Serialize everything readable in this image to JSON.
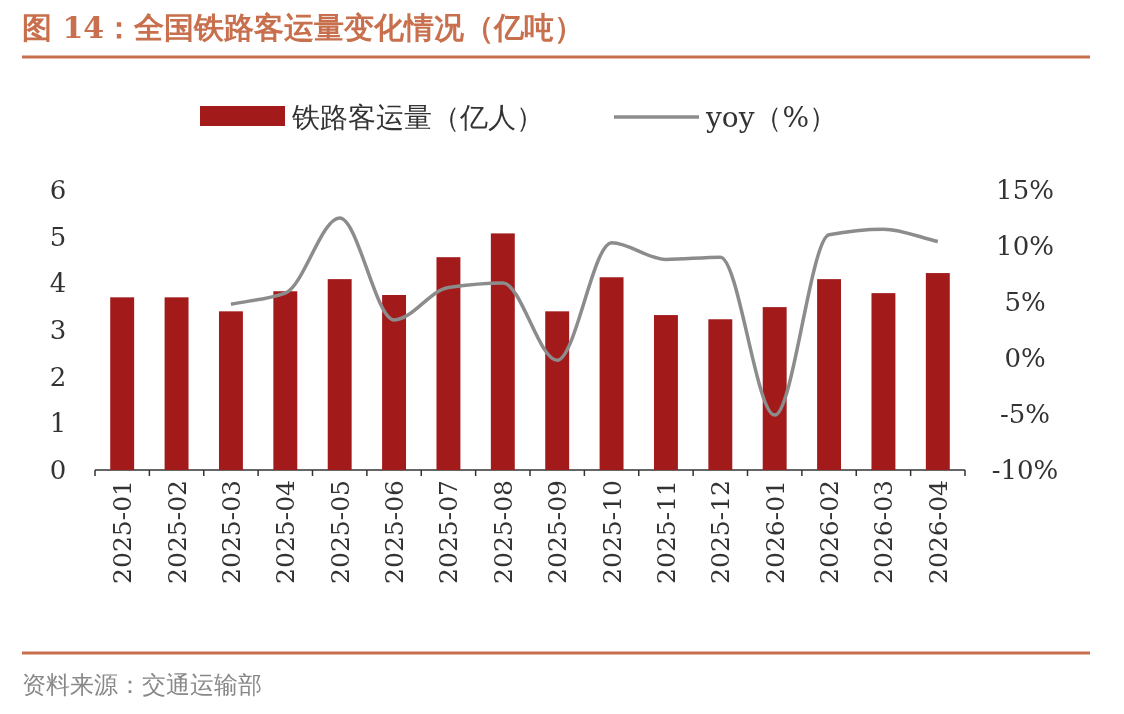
{
  "chart_data": {
    "type": "bar",
    "title": "图 14：全国铁路客运量变化情况（亿吨）",
    "annotations": [
      "资料来源：交通运输部"
    ],
    "categories": [
      "2025-01",
      "2025-02",
      "2025-03",
      "2025-04",
      "2025-05",
      "2025-06",
      "2025-07",
      "2025-08",
      "2025-09",
      "2025-10",
      "2025-11",
      "2025-12",
      "2026-01",
      "2026-02",
      "2026-03",
      "2026-04"
    ],
    "series": [
      {
        "name": "铁路客运量（亿人）",
        "color": "#a31a1b",
        "values": [
          3.7,
          3.7,
          3.4,
          3.83,
          4.09,
          3.75,
          4.56,
          5.07,
          3.4,
          4.13,
          3.32,
          3.23,
          3.49,
          4.09,
          3.79,
          4.22
        ]
      },
      {
        "name": "yoy（%）",
        "type": "line",
        "axis": "y2",
        "color": "#8c8c8c",
        "values": [
          null,
          null,
          4.8,
          5.8,
          12.5,
          3.4,
          6.3,
          6.7,
          -0.2,
          10.3,
          8.8,
          9.0,
          -5.1,
          11.0,
          11.5,
          10.4
        ]
      }
    ],
    "ylim": [
      0,
      6
    ],
    "yticks": [
      0,
      1,
      2,
      3,
      4,
      5,
      6
    ],
    "y2lim": [
      -10,
      15
    ],
    "y2ticks": [
      {
        "value": 15,
        "label": "15%"
      },
      {
        "value": 10,
        "label": "10%"
      },
      {
        "value": 5,
        "label": "5%"
      },
      {
        "value": 0,
        "label": "0%"
      },
      {
        "value": -5,
        "label": "-5%"
      },
      {
        "value": -10,
        "label": "-10%"
      }
    ],
    "legend": "top",
    "grid": false
  }
}
